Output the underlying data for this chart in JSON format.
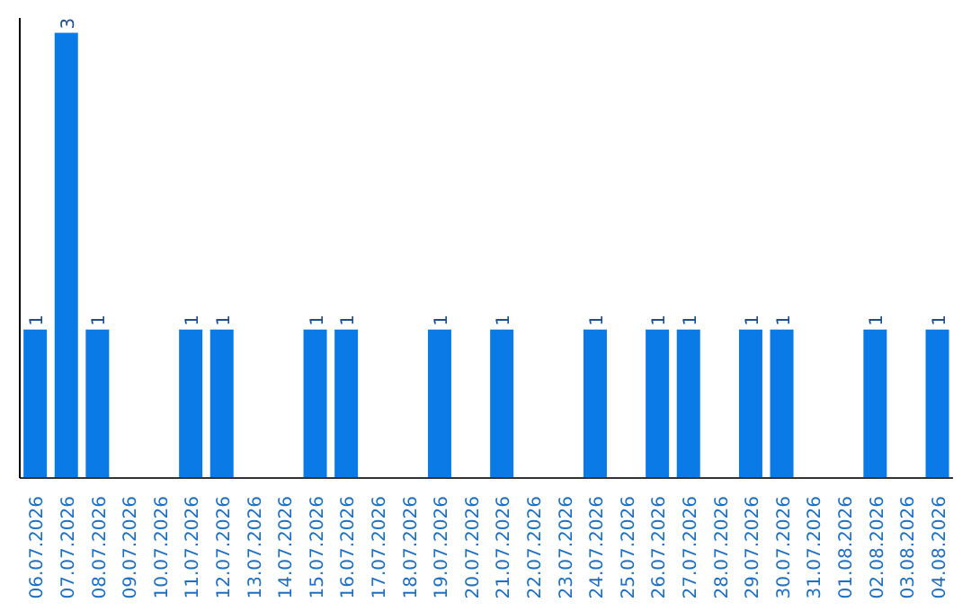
{
  "chart_data": {
    "type": "bar",
    "categories": [
      "06.07.2026",
      "07.07.2026",
      "08.07.2026",
      "09.07.2026",
      "10.07.2026",
      "11.07.2026",
      "12.07.2026",
      "13.07.2026",
      "14.07.2026",
      "15.07.2026",
      "16.07.2026",
      "17.07.2026",
      "18.07.2026",
      "19.07.2026",
      "20.07.2026",
      "21.07.2026",
      "22.07.2026",
      "23.07.2026",
      "24.07.2026",
      "25.07.2026",
      "26.07.2026",
      "27.07.2026",
      "28.07.2026",
      "29.07.2026",
      "30.07.2026",
      "31.07.2026",
      "01.08.2026",
      "02.08.2026",
      "03.08.2026",
      "04.08.2026"
    ],
    "values": [
      1,
      3,
      1,
      0,
      0,
      1,
      1,
      0,
      0,
      1,
      1,
      0,
      0,
      1,
      0,
      1,
      0,
      0,
      1,
      0,
      1,
      1,
      0,
      1,
      1,
      0,
      0,
      1,
      0,
      1
    ],
    "value_labels": [
      "1",
      "3",
      "1",
      null,
      null,
      "1",
      "1",
      null,
      null,
      "1",
      "1",
      null,
      null,
      "1",
      null,
      "1",
      null,
      null,
      "1",
      null,
      "1",
      "1",
      null,
      "1",
      "1",
      null,
      null,
      "1",
      null,
      "1"
    ],
    "color": "#0a7be6",
    "ylim": [
      0,
      3.1
    ],
    "tick_labels": "x"
  }
}
